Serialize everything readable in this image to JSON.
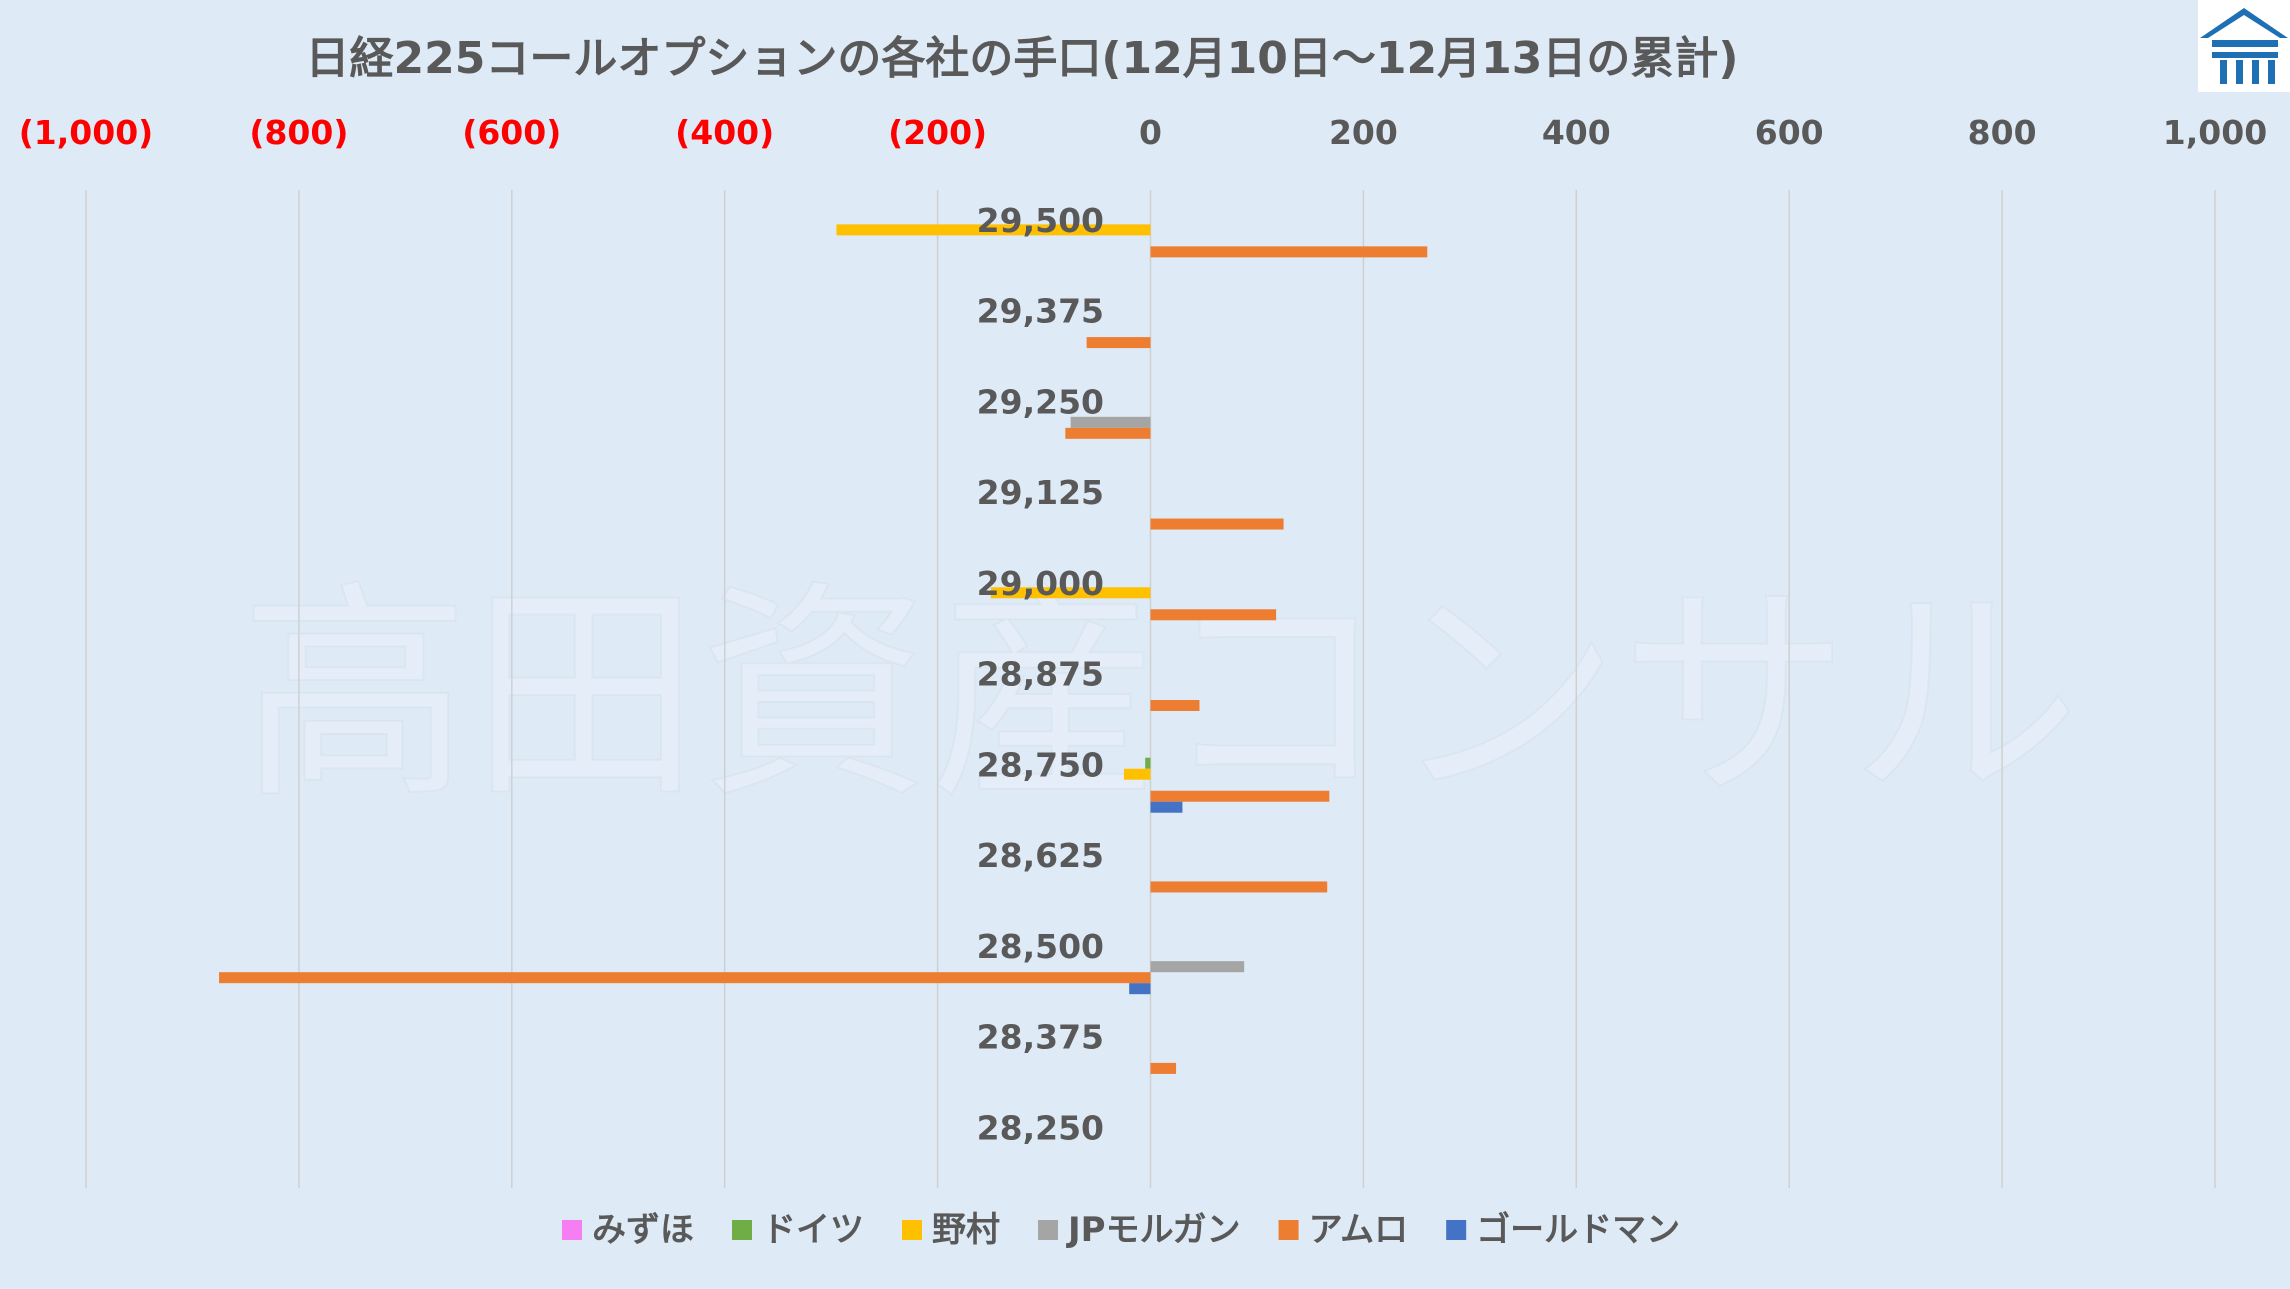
{
  "watermark": "高田資産コンサル",
  "colors": {
    "background": "#deeaf6",
    "gridline": "#d0d0d0",
    "negative_tick": "#ff0000",
    "positive_tick": "#595959",
    "logo": "#1f6fb5"
  },
  "logo": {
    "icon": "house-logo-icon"
  },
  "chart_data": {
    "type": "bar",
    "orientation": "horizontal",
    "title": "日経225コールオプションの各社の手口(12月10日〜12月13日の累計)",
    "xlim": [
      -1000,
      1000
    ],
    "x_ticks": [
      -1000,
      -800,
      -600,
      -400,
      -200,
      0,
      200,
      400,
      600,
      800,
      1000
    ],
    "x_tick_labels": [
      "(1,000)",
      "(800)",
      "(600)",
      "(400)",
      "(200)",
      "0",
      "200",
      "400",
      "600",
      "800",
      "1,000"
    ],
    "categories": [
      "29,500",
      "29,375",
      "29,250",
      "29,125",
      "29,000",
      "28,875",
      "28,750",
      "28,625",
      "28,500",
      "28,375",
      "28,250"
    ],
    "grid": true,
    "legend_position": "bottom",
    "series": [
      {
        "name": "みずほ",
        "color": "#f57ff2",
        "values": [
          0,
          0,
          0,
          0,
          0,
          0,
          0,
          0,
          0,
          0,
          0
        ]
      },
      {
        "name": "ドイツ",
        "color": "#70ad47",
        "values": [
          0,
          0,
          0,
          0,
          0,
          0,
          -5,
          0,
          0,
          0,
          0
        ]
      },
      {
        "name": "野村",
        "color": "#ffc000",
        "values": [
          -295,
          0,
          0,
          0,
          -150,
          0,
          -25,
          0,
          0,
          0,
          0
        ]
      },
      {
        "name": "JPモルガン",
        "color": "#a5a5a5",
        "values": [
          0,
          0,
          -75,
          0,
          0,
          0,
          0,
          0,
          88,
          0,
          0
        ]
      },
      {
        "name": "アムロ",
        "color": "#ed7d31",
        "values": [
          260,
          -60,
          -80,
          125,
          118,
          46,
          168,
          166,
          -875,
          24,
          0
        ]
      },
      {
        "name": "ゴールドマン",
        "color": "#4472c4",
        "values": [
          0,
          0,
          0,
          0,
          0,
          0,
          30,
          0,
          -20,
          0,
          0
        ]
      }
    ]
  }
}
